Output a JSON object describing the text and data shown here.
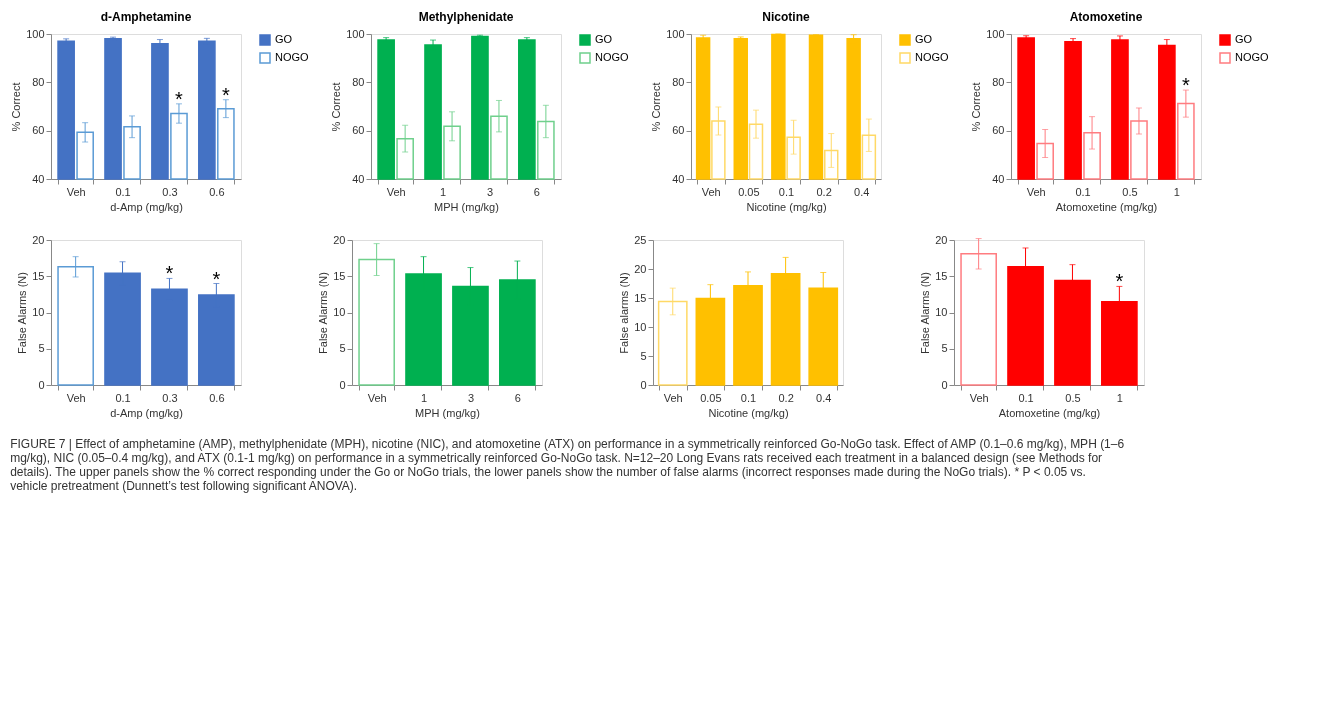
{
  "chart_data": [
    {
      "type": "bar",
      "title": "d-Amphetamine",
      "xlabel": "d-Amp (mg/kg)",
      "ylabel": "% Correct",
      "categories": [
        "Veh",
        "0.1",
        "0.3",
        "0.6"
      ],
      "ylim": [
        40,
        100
      ],
      "yticks": [
        40,
        60,
        80,
        100
      ],
      "legend": "top right",
      "series": [
        {
          "name": "GO",
          "color": "#4472c4",
          "values": [
            97,
            98,
            96,
            97
          ],
          "errors": [
            1,
            0.7,
            1.7,
            1.2
          ]
        },
        {
          "name": "NOGO",
          "color": "#5b9bd5",
          "values": [
            59.3,
            61.6,
            67.1,
            69.1
          ],
          "errors": [
            4,
            4.5,
            4,
            3.7
          ]
        }
      ],
      "annotations": [
        {
          "text": "*",
          "x": "0.3",
          "y": 71.1
        },
        {
          "text": "*",
          "x": "0.6",
          "y": 72.8
        },
        "FIGURE 7 | Effect of amphetamine (AMP), methylphenidate (MPH), nicotine (NIC), and atomoxetine (ATX) on performance in a symmetrically reinforced Go-NoGo task. Effect of AMP (0.1–0.6 mg/kg), MPH (1–6 mg/kg), NIC (0.05–0.4 mg/kg), and ATX (0.1-1 mg/kg) on performance in a symmetrically reinforced Go-NoGo task. N=12–20 Long Evans rats received each treatment in a balanced design (see Methods for details). The upper panels show the % correct responding under the Go or NoGo trials, the lower panels show the number of false alarms (incorrect responses made during the NoGo trials). * P < 0.05 vs. vehicle pretreatment (Dunnett’s test following significant ANOVA)."
      ]
    },
    {
      "type": "bar",
      "title": "Methylphenidate",
      "xlabel": "MPH (mg/kg)",
      "ylabel": "% Correct",
      "categories": [
        "Veh",
        "1",
        "3",
        "6"
      ],
      "ylim": [
        40,
        100
      ],
      "yticks": [
        40,
        60,
        80,
        100
      ],
      "legend": "top right",
      "series": [
        {
          "name": "GO",
          "color": "#00b050",
          "values": [
            97.5,
            95.5,
            99,
            97.5
          ],
          "errors": [
            1,
            2,
            0.5,
            1
          ]
        },
        {
          "name": "NOGO",
          "color": "#6fd08c",
          "values": [
            56.7,
            61.8,
            66,
            63.8
          ],
          "errors": [
            5.5,
            6,
            6.5,
            6.7
          ]
        }
      ]
    },
    {
      "type": "bar",
      "title": "Nicotine",
      "xlabel": "Nicotine (mg/kg)",
      "ylabel": "% Correct",
      "categories": [
        "Veh",
        "0.05",
        "0.1",
        "0.2",
        "0.4"
      ],
      "ylim": [
        40,
        100
      ],
      "yticks": [
        40,
        60,
        80,
        100
      ],
      "legend": "top right",
      "series": [
        {
          "name": "GO",
          "color": "#ffc000",
          "values": [
            98.3,
            98,
            99.8,
            99.5,
            98
          ],
          "errors": [
            1.2,
            0.8,
            0.2,
            0.2,
            1.7
          ]
        },
        {
          "name": "NOGO",
          "color": "#ffd966",
          "values": [
            64,
            62.7,
            57.3,
            51.8,
            58.1
          ],
          "errors": [
            5.8,
            5.8,
            7,
            7,
            6.7
          ]
        }
      ]
    },
    {
      "type": "bar",
      "title": "Atomoxetine",
      "xlabel": "Atomoxetine (mg/kg)",
      "ylabel": "% Correct",
      "categories": [
        "Veh",
        "0.1",
        "0.5",
        "1"
      ],
      "ylim": [
        40,
        100
      ],
      "yticks": [
        40,
        60,
        80,
        100
      ],
      "legend": "top right",
      "series": [
        {
          "name": "GO",
          "color": "#ff0000",
          "values": [
            98.3,
            96.8,
            97.5,
            95.2
          ],
          "errors": [
            1,
            1.3,
            1.7,
            2.5
          ]
        },
        {
          "name": "NOGO",
          "color": "#ff7c80",
          "values": [
            54.7,
            59.1,
            64,
            71.2
          ],
          "errors": [
            5.8,
            6.7,
            5.4,
            5.6
          ]
        }
      ],
      "annotations": [
        {
          "text": "*",
          "x": "1",
          "y": 76.8
        }
      ]
    },
    {
      "type": "bar",
      "xlabel": "d-Amp (mg/kg)",
      "ylabel": "False Alarms (N)",
      "categories": [
        "Veh",
        "0.1",
        "0.3",
        "0.6"
      ],
      "ylim": [
        0,
        20
      ],
      "yticks": [
        0,
        5,
        10,
        15,
        20
      ],
      "stacked": true,
      "series": [
        {
          "color": "#5b9bd5",
          "values": [
            16.3,
            null,
            null,
            null
          ],
          "errors": [
            1.4,
            null,
            null,
            null
          ]
        },
        {
          "color": "#4472c4",
          "values": [
            null,
            15.4,
            13.2,
            12.4
          ],
          "errors": [
            null,
            1.6,
            1.5,
            1.6
          ]
        }
      ],
      "annotations": [
        {
          "text": "*",
          "x": "0.3",
          "y": 14.7
        },
        {
          "text": "*",
          "x": "0.6",
          "y": 14
        }
      ]
    },
    {
      "type": "bar",
      "xlabel": "MPH (mg/kg)",
      "ylabel": "False Alarms (N)",
      "categories": [
        "Veh",
        "1",
        "3",
        "6"
      ],
      "ylim": [
        0,
        20
      ],
      "yticks": [
        0,
        5,
        10,
        15,
        20
      ],
      "stacked": true,
      "series": [
        {
          "color": "#6fd08c",
          "values": [
            17.3,
            null,
            null,
            null
          ],
          "errors": [
            2.2,
            null,
            null,
            null
          ]
        },
        {
          "color": "#00b050",
          "values": [
            null,
            15.3,
            13.6,
            14.5
          ],
          "errors": [
            null,
            2.4,
            2.6,
            2.6
          ]
        }
      ]
    },
    {
      "type": "bar",
      "xlabel": "Nicotine (mg/kg)",
      "ylabel": "False alarms (N)",
      "categories": [
        "Veh",
        "0.05",
        "0.1",
        "0.2",
        "0.4"
      ],
      "ylim": [
        0,
        25
      ],
      "yticks": [
        0,
        5,
        10,
        15,
        20,
        25
      ],
      "stacked": true,
      "series": [
        {
          "color": "#ffd966",
          "values": [
            14.4,
            null,
            null,
            null,
            null
          ],
          "errors": [
            2.3,
            null,
            null,
            null,
            null
          ]
        },
        {
          "color": "#ffc000",
          "values": [
            null,
            14.9,
            17.1,
            19.2,
            16.7
          ],
          "errors": [
            null,
            2.4,
            2.4,
            2.8,
            2.7
          ]
        }
      ]
    },
    {
      "type": "bar",
      "xlabel": "Atomoxetine (mg/kg)",
      "ylabel": "False Alarms (N)",
      "categories": [
        "Veh",
        "0.1",
        "0.5",
        "1"
      ],
      "ylim": [
        0,
        20
      ],
      "yticks": [
        0,
        5,
        10,
        15,
        20
      ],
      "stacked": true,
      "series": [
        {
          "color": "#ff7c80",
          "values": [
            18.1,
            null,
            null,
            null
          ],
          "errors": [
            2.1,
            null,
            null,
            null
          ]
        },
        {
          "color": "#ff0000",
          "values": [
            null,
            16.3,
            14.4,
            11.5
          ],
          "errors": [
            null,
            2.6,
            2.2,
            2.1
          ]
        }
      ],
      "annotations": [
        {
          "text": "*",
          "x": "1",
          "y": 13.6
        }
      ]
    }
  ]
}
